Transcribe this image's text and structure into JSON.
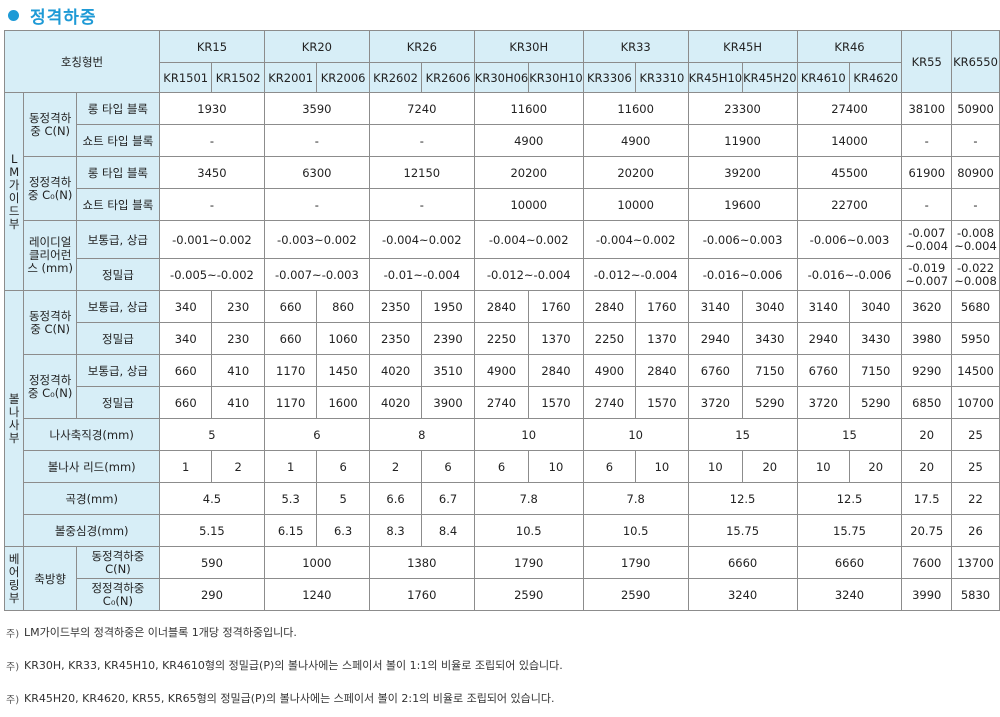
{
  "title": "정격하중",
  "colors": {
    "accent": "#1e9ad6",
    "header_bg": "#d7eef7",
    "border": "#8c8c8c"
  },
  "header": {
    "model_label": "호칭형번",
    "groups": [
      {
        "name": "KR15",
        "subs": [
          "KR1501",
          "KR1502"
        ]
      },
      {
        "name": "KR20",
        "subs": [
          "KR2001",
          "KR2006"
        ]
      },
      {
        "name": "KR26",
        "subs": [
          "KR2602",
          "KR2606"
        ]
      },
      {
        "name": "KR30H",
        "subs": [
          "KR30H06",
          "KR30H10"
        ]
      },
      {
        "name": "KR33",
        "subs": [
          "KR3306",
          "KR3310"
        ]
      },
      {
        "name": "KR45H",
        "subs": [
          "KR45H10",
          "KR45H20"
        ]
      },
      {
        "name": "KR46",
        "subs": [
          "KR4610",
          "KR4620"
        ]
      },
      {
        "name": "KR55",
        "subs": []
      },
      {
        "name": "KR6550",
        "subs": []
      }
    ]
  },
  "sections": {
    "lm": [
      "L",
      "M",
      "가",
      "이",
      "드",
      "부"
    ],
    "ball": [
      "볼",
      "나",
      "사",
      "부"
    ],
    "bearing": [
      "베",
      "어",
      "링",
      "부"
    ]
  },
  "labels": {
    "dyn_load": "동정격하중 C(N)",
    "stat_load": "정정격하중 C₀(N)",
    "long_block": "롱 타입 블록",
    "short_block": "쇼트 타입 블록",
    "radial": "레이디얼클리어런스 (mm)",
    "normal": "보통급, 상급",
    "precision": "정밀급",
    "shaft_dia": "나사축직경(mm)",
    "lead": "볼나사 리드(mm)",
    "ball_dia": "곡경(mm)",
    "pcd": "볼중심경(mm)",
    "axial": "축방향",
    "bear_dyn": "동정격하중 C(N)",
    "bear_stat": "정정격하중 C₀(N)"
  },
  "lm_rows": {
    "dyn_long": [
      "1930",
      "3590",
      "7240",
      "11600",
      "11600",
      "23300",
      "27400",
      "38100",
      "50900"
    ],
    "dyn_short": [
      "-",
      "-",
      "-",
      "4900",
      "4900",
      "11900",
      "14000",
      "-",
      "-"
    ],
    "stat_long": [
      "3450",
      "6300",
      "12150",
      "20200",
      "20200",
      "39200",
      "45500",
      "61900",
      "80900"
    ],
    "stat_short": [
      "-",
      "-",
      "-",
      "10000",
      "10000",
      "19600",
      "22700",
      "-",
      "-"
    ],
    "rad_normal": [
      "-0.001~0.002",
      "-0.003~0.002",
      "-0.004~0.002",
      "-0.004~0.002",
      "-0.004~0.002",
      "-0.006~0.003",
      "-0.006~0.003",
      "-0.007 ~0.004",
      "-0.008 ~0.004"
    ],
    "rad_precision": [
      "-0.005~-0.002",
      "-0.007~-0.003",
      "-0.01~-0.004",
      "-0.012~-0.004",
      "-0.012~-0.004",
      "-0.016~0.006",
      "-0.016~-0.006",
      "-0.019 ~0.007",
      "-0.022 ~0.008"
    ]
  },
  "ball_rows": {
    "dyn_normal": [
      "340",
      "230",
      "660",
      "860",
      "2350",
      "1950",
      "2840",
      "1760",
      "2840",
      "1760",
      "3140",
      "3040",
      "3140",
      "3040",
      "3620",
      "5680"
    ],
    "dyn_precision": [
      "340",
      "230",
      "660",
      "1060",
      "2350",
      "2390",
      "2250",
      "1370",
      "2250",
      "1370",
      "2940",
      "3430",
      "2940",
      "3430",
      "3980",
      "5950"
    ],
    "stat_normal": [
      "660",
      "410",
      "1170",
      "1450",
      "4020",
      "3510",
      "4900",
      "2840",
      "4900",
      "2840",
      "6760",
      "7150",
      "6760",
      "7150",
      "9290",
      "14500"
    ],
    "stat_precision": [
      "660",
      "410",
      "1170",
      "1600",
      "4020",
      "3900",
      "2740",
      "1570",
      "2740",
      "1570",
      "3720",
      "5290",
      "3720",
      "5290",
      "6850",
      "10700"
    ],
    "shaft_dia": [
      "5",
      "6",
      "8",
      "10",
      "10",
      "15",
      "15",
      "20",
      "25"
    ],
    "lead": [
      "1",
      "2",
      "1",
      "6",
      "2",
      "6",
      "6",
      "10",
      "6",
      "10",
      "10",
      "20",
      "10",
      "20",
      "20",
      "25"
    ],
    "ball_dia": [
      "4.5",
      "5.3",
      "5",
      "6.6",
      "6.7",
      "7.8",
      "7.8",
      "12.5",
      "12.5",
      "17.5",
      "22"
    ],
    "pcd": [
      "5.15",
      "6.15",
      "6.3",
      "8.3",
      "8.4",
      "10.5",
      "10.5",
      "15.75",
      "15.75",
      "20.75",
      "26"
    ]
  },
  "bearing_rows": {
    "dyn": [
      "590",
      "1000",
      "1380",
      "1790",
      "1790",
      "6660",
      "6660",
      "7600",
      "13700"
    ],
    "stat": [
      "290",
      "1240",
      "1760",
      "2590",
      "2590",
      "3240",
      "3240",
      "3990",
      "5830"
    ]
  },
  "notes": [
    {
      "mark": "주)",
      "text": "LM가이드부의 정격하중은 이너블록 1개당 정격하중입니다."
    },
    {
      "mark": "주)",
      "text": "KR30H, KR33, KR45H10, KR4610형의 정밀급(P)의 볼나사에는 스페이서 볼이 1:1의 비율로 조립되어 있습니다."
    },
    {
      "mark": "주)",
      "text": "KR45H20, KR4620, KR55, KR65형의 정밀급(P)의 볼나사에는 스페이서 볼이 2:1의 비율로 조립되어 있습니다."
    }
  ]
}
